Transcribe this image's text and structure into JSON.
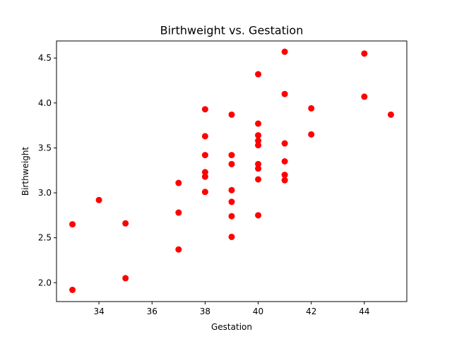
{
  "chart_data": {
    "type": "scatter",
    "title": "Birthweight vs. Gestation",
    "xlabel": "Gestation",
    "ylabel": "Birthweight",
    "xlim": [
      32.4,
      45.6
    ],
    "ylim": [
      1.79,
      4.69
    ],
    "xticks": [
      34,
      36,
      38,
      40,
      42,
      44
    ],
    "yticks": [
      2.0,
      2.5,
      3.0,
      3.5,
      4.0,
      4.5
    ],
    "xtick_labels": [
      "34",
      "36",
      "38",
      "40",
      "42",
      "44"
    ],
    "ytick_labels": [
      "2.0",
      "2.5",
      "3.0",
      "3.5",
      "4.0",
      "4.5"
    ],
    "grid": false,
    "marker_color": "#ff0000",
    "points": [
      {
        "x": 33,
        "y": 2.65
      },
      {
        "x": 33,
        "y": 1.92
      },
      {
        "x": 34,
        "y": 2.92
      },
      {
        "x": 35,
        "y": 2.66
      },
      {
        "x": 35,
        "y": 2.05
      },
      {
        "x": 37,
        "y": 3.11
      },
      {
        "x": 37,
        "y": 2.78
      },
      {
        "x": 37,
        "y": 2.37
      },
      {
        "x": 38,
        "y": 3.93
      },
      {
        "x": 38,
        "y": 3.63
      },
      {
        "x": 38,
        "y": 3.42
      },
      {
        "x": 38,
        "y": 3.23
      },
      {
        "x": 38,
        "y": 3.18
      },
      {
        "x": 38,
        "y": 3.01
      },
      {
        "x": 39,
        "y": 3.87
      },
      {
        "x": 39,
        "y": 3.42
      },
      {
        "x": 39,
        "y": 3.32
      },
      {
        "x": 39,
        "y": 3.03
      },
      {
        "x": 39,
        "y": 2.9
      },
      {
        "x": 39,
        "y": 2.74
      },
      {
        "x": 39,
        "y": 2.51
      },
      {
        "x": 40,
        "y": 4.32
      },
      {
        "x": 40,
        "y": 3.77
      },
      {
        "x": 40,
        "y": 3.64
      },
      {
        "x": 40,
        "y": 3.58
      },
      {
        "x": 40,
        "y": 3.53
      },
      {
        "x": 40,
        "y": 3.32
      },
      {
        "x": 40,
        "y": 3.27
      },
      {
        "x": 40,
        "y": 3.15
      },
      {
        "x": 40,
        "y": 2.75
      },
      {
        "x": 41,
        "y": 4.57
      },
      {
        "x": 41,
        "y": 4.1
      },
      {
        "x": 41,
        "y": 3.55
      },
      {
        "x": 41,
        "y": 3.35
      },
      {
        "x": 41,
        "y": 3.2
      },
      {
        "x": 41,
        "y": 3.14
      },
      {
        "x": 42,
        "y": 3.94
      },
      {
        "x": 42,
        "y": 3.65
      },
      {
        "x": 44,
        "y": 4.55
      },
      {
        "x": 44,
        "y": 4.07
      },
      {
        "x": 45,
        "y": 3.87
      }
    ]
  }
}
